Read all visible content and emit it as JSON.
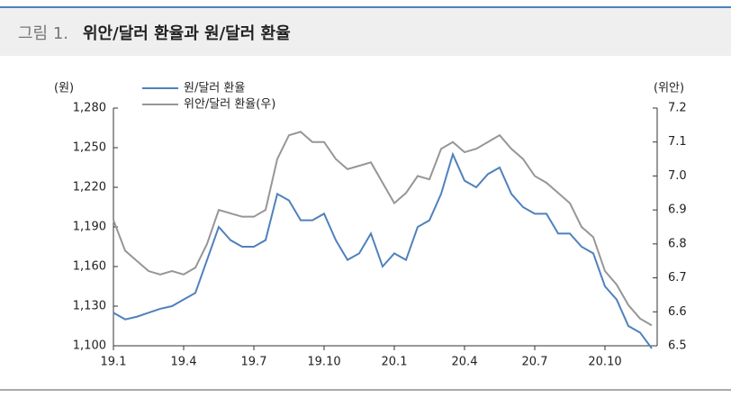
{
  "header": {
    "label": "그림 1.",
    "title": "위안/달러 환율과 원/달러 환율"
  },
  "chart_data": {
    "type": "line",
    "y_unit": "(원)",
    "y2_unit": "(위안)",
    "categories": [
      "19.1",
      null,
      null,
      null,
      null,
      null,
      "19.4",
      null,
      null,
      null,
      null,
      null,
      "19.7",
      null,
      null,
      null,
      null,
      null,
      "19.10",
      null,
      null,
      null,
      null,
      null,
      "20.1",
      null,
      null,
      null,
      null,
      null,
      "20.4",
      null,
      null,
      null,
      null,
      null,
      "20.7",
      null,
      null,
      null,
      null,
      null,
      "20.10",
      null,
      null,
      null,
      null
    ],
    "series": [
      {
        "name": "원/달러 환율",
        "color": "#4f81bd",
        "axis": "y",
        "values": [
          1125,
          1120,
          1122,
          1125,
          1128,
          1130,
          1135,
          1140,
          1165,
          1190,
          1180,
          1175,
          1175,
          1180,
          1215,
          1210,
          1195,
          1195,
          1200,
          1180,
          1165,
          1170,
          1185,
          1160,
          1170,
          1165,
          1190,
          1195,
          1215,
          1245,
          1225,
          1220,
          1230,
          1235,
          1215,
          1205,
          1200,
          1200,
          1185,
          1185,
          1175,
          1170,
          1145,
          1135,
          1115,
          1110,
          1098
        ]
      },
      {
        "name": "위안/달러 환율(우)",
        "color": "#969696",
        "axis": "y2",
        "values": [
          6.87,
          6.78,
          6.75,
          6.72,
          6.71,
          6.72,
          6.71,
          6.73,
          6.8,
          6.9,
          6.89,
          6.88,
          6.88,
          6.9,
          7.05,
          7.12,
          7.13,
          7.1,
          7.1,
          7.05,
          7.02,
          7.03,
          7.04,
          6.98,
          6.92,
          6.95,
          7.0,
          6.99,
          7.08,
          7.1,
          7.07,
          7.08,
          7.1,
          7.12,
          7.08,
          7.05,
          7.0,
          6.98,
          6.95,
          6.92,
          6.85,
          6.82,
          6.72,
          6.68,
          6.62,
          6.58,
          6.56
        ]
      }
    ],
    "ylim": [
      1100,
      1280
    ],
    "yticks": [
      {
        "value": 1100,
        "label": "1,100"
      },
      {
        "value": 1130,
        "label": "1,130"
      },
      {
        "value": 1160,
        "label": "1,160"
      },
      {
        "value": 1190,
        "label": "1,190"
      },
      {
        "value": 1220,
        "label": "1,220"
      },
      {
        "value": 1250,
        "label": "1,250"
      },
      {
        "value": 1280,
        "label": "1,280"
      }
    ],
    "y2lim": [
      6.5,
      7.2
    ],
    "y2ticks": [
      6.5,
      6.6,
      6.7,
      6.8,
      6.9,
      {
        "value": 7,
        "label": "7.0"
      },
      7.1,
      7.2
    ],
    "grid": false,
    "legend": "top-left"
  }
}
